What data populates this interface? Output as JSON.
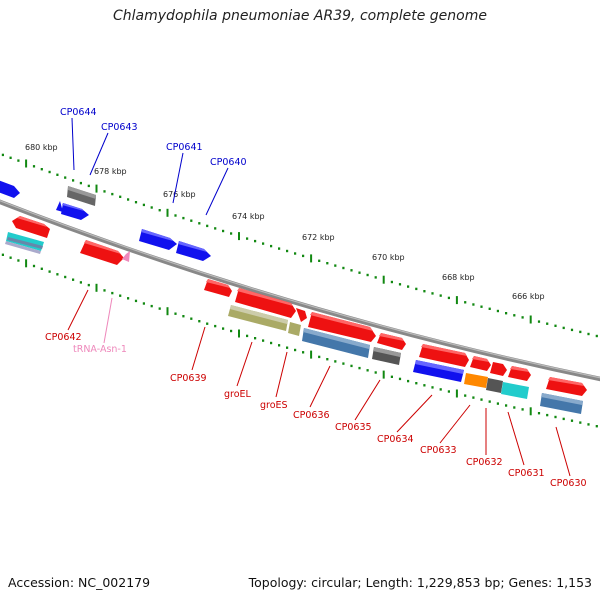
{
  "title": "Chlamydophila pneumoniae AR39, complete genome",
  "footer": {
    "accession": "Accession: NC_002179",
    "stats": "Topology: circular; Length: 1,229,853 bp; Genes: 1,153"
  },
  "scale": {
    "outer": [
      "680 kbp",
      "678 kbp",
      "676 kbp",
      "674 kbp",
      "672 kbp",
      "670 kbp",
      "668 kbp",
      "666 kbp"
    ]
  },
  "labels": {
    "top": [
      "CP0644",
      "CP0643",
      "CP0641",
      "CP0640"
    ],
    "bottom": [
      "CP0642",
      "tRNA-Asn-1",
      "CP0639",
      "groEL",
      "groES",
      "CP0636",
      "CP0635",
      "CP0634",
      "CP0633",
      "CP0632",
      "CP0631",
      "CP0630"
    ]
  },
  "colors": {
    "red_label": "#cc0000",
    "blue_label": "#0000cc",
    "pink_label": "#ee88bb",
    "tick": "#118811",
    "backbone": "#888888"
  }
}
